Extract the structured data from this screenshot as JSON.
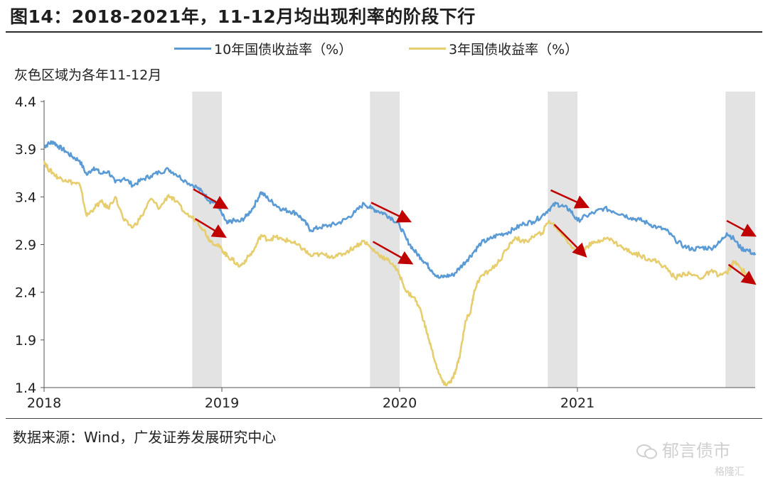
{
  "page": {
    "title": "图14：2018-2021年，11-12月均出现利率的阶段下行",
    "note": "灰色区域为各年11-12月",
    "source": "数据来源：Wind，广发证券发展研究中心",
    "watermark": "郁言债市",
    "watermark2": "格隆汇"
  },
  "chart_data": {
    "type": "line",
    "title": "图14：2018-2021年，11-12月均出现利率的阶段下行",
    "xlabel": "",
    "ylabel": "",
    "xlim": [
      2018.0,
      2022.0
    ],
    "ylim": [
      1.4,
      4.4
    ],
    "yticks": [
      1.4,
      1.9,
      2.4,
      2.9,
      3.4,
      3.9,
      4.4
    ],
    "ytick_labels": [
      "1.4",
      "1.9",
      "2.4",
      "2.9",
      "3.4",
      "3.9",
      "4.4"
    ],
    "xticks": [
      2018,
      2019,
      2020,
      2021
    ],
    "xtick_labels": [
      "2018",
      "2019",
      "2020",
      "2021"
    ],
    "grid": false,
    "legend_position": "top",
    "colors": {
      "shade": "#e3e3e3",
      "arrow": "#c00000"
    },
    "shaded_periods": [
      {
        "from": 2018.833,
        "to": 2019.0
      },
      {
        "from": 2019.833,
        "to": 2020.0
      },
      {
        "from": 2020.833,
        "to": 2021.0
      },
      {
        "from": 2021.833,
        "to": 2022.0
      }
    ],
    "series": [
      {
        "name": "10年国债收益率（%）",
        "color": "#5b9bd5",
        "x": [
          2018.0,
          2018.02,
          2018.05,
          2018.08,
          2018.12,
          2018.16,
          2018.2,
          2018.24,
          2018.28,
          2018.32,
          2018.36,
          2018.4,
          2018.45,
          2018.5,
          2018.55,
          2018.6,
          2018.65,
          2018.7,
          2018.74,
          2018.8,
          2018.86,
          2018.9,
          2018.93,
          2018.97,
          2019.0,
          2019.03,
          2019.06,
          2019.1,
          2019.14,
          2019.18,
          2019.22,
          2019.26,
          2019.3,
          2019.34,
          2019.38,
          2019.42,
          2019.46,
          2019.5,
          2019.55,
          2019.6,
          2019.65,
          2019.7,
          2019.75,
          2019.8,
          2019.84,
          2019.88,
          2019.92,
          2019.96,
          2020.0,
          2020.04,
          2020.08,
          2020.12,
          2020.15,
          2020.18,
          2020.22,
          2020.26,
          2020.3,
          2020.34,
          2020.38,
          2020.42,
          2020.46,
          2020.5,
          2020.55,
          2020.6,
          2020.65,
          2020.7,
          2020.75,
          2020.8,
          2020.84,
          2020.88,
          2020.92,
          2020.96,
          2021.0,
          2021.05,
          2021.1,
          2021.15,
          2021.2,
          2021.25,
          2021.3,
          2021.35,
          2021.4,
          2021.45,
          2021.5,
          2021.55,
          2021.6,
          2021.65,
          2021.7,
          2021.75,
          2021.8,
          2021.84,
          2021.88,
          2021.92,
          2021.96,
          2022.0
        ],
        "values": [
          3.93,
          3.95,
          3.98,
          3.93,
          3.88,
          3.82,
          3.78,
          3.63,
          3.71,
          3.64,
          3.67,
          3.55,
          3.6,
          3.52,
          3.58,
          3.62,
          3.66,
          3.69,
          3.64,
          3.56,
          3.5,
          3.43,
          3.36,
          3.33,
          3.22,
          3.12,
          3.15,
          3.14,
          3.2,
          3.3,
          3.45,
          3.38,
          3.32,
          3.27,
          3.25,
          3.23,
          3.15,
          3.05,
          3.08,
          3.1,
          3.12,
          3.17,
          3.24,
          3.33,
          3.28,
          3.25,
          3.22,
          3.17,
          3.1,
          2.95,
          2.84,
          2.76,
          2.7,
          2.63,
          2.55,
          2.57,
          2.58,
          2.66,
          2.74,
          2.83,
          2.92,
          2.95,
          3.0,
          3.02,
          3.07,
          3.12,
          3.14,
          3.2,
          3.27,
          3.33,
          3.3,
          3.26,
          3.15,
          3.2,
          3.24,
          3.28,
          3.25,
          3.22,
          3.18,
          3.16,
          3.12,
          3.08,
          3.05,
          2.95,
          2.88,
          2.85,
          2.87,
          2.86,
          2.92,
          3.02,
          2.96,
          2.86,
          2.84,
          2.79
        ]
      },
      {
        "name": "3年国债收益率（%）",
        "color": "#e6cd6e",
        "x": [
          2018.0,
          2018.02,
          2018.05,
          2018.08,
          2018.12,
          2018.16,
          2018.2,
          2018.24,
          2018.28,
          2018.32,
          2018.36,
          2018.4,
          2018.45,
          2018.5,
          2018.55,
          2018.6,
          2018.65,
          2018.7,
          2018.74,
          2018.8,
          2018.86,
          2018.9,
          2018.93,
          2018.97,
          2019.0,
          2019.03,
          2019.06,
          2019.1,
          2019.14,
          2019.18,
          2019.22,
          2019.26,
          2019.3,
          2019.34,
          2019.38,
          2019.42,
          2019.46,
          2019.5,
          2019.55,
          2019.6,
          2019.65,
          2019.7,
          2019.75,
          2019.8,
          2019.84,
          2019.88,
          2019.92,
          2019.96,
          2020.0,
          2020.04,
          2020.08,
          2020.12,
          2020.15,
          2020.18,
          2020.22,
          2020.25,
          2020.28,
          2020.3,
          2020.32,
          2020.34,
          2020.37,
          2020.4,
          2020.42,
          2020.45,
          2020.5,
          2020.55,
          2020.6,
          2020.65,
          2020.7,
          2020.75,
          2020.8,
          2020.84,
          2020.88,
          2020.92,
          2020.96,
          2021.0,
          2021.05,
          2021.1,
          2021.15,
          2021.2,
          2021.25,
          2021.3,
          2021.35,
          2021.4,
          2021.45,
          2021.5,
          2021.55,
          2021.6,
          2021.65,
          2021.7,
          2021.75,
          2021.8,
          2021.84,
          2021.88,
          2021.92,
          2021.96,
          2022.0
        ],
        "values": [
          3.78,
          3.7,
          3.65,
          3.6,
          3.58,
          3.55,
          3.53,
          3.2,
          3.28,
          3.35,
          3.28,
          3.4,
          3.15,
          3.08,
          3.2,
          3.38,
          3.28,
          3.42,
          3.35,
          3.22,
          3.15,
          3.05,
          2.95,
          2.9,
          2.85,
          2.78,
          2.74,
          2.67,
          2.75,
          2.84,
          3.0,
          2.95,
          2.98,
          2.95,
          2.94,
          2.9,
          2.85,
          2.78,
          2.8,
          2.78,
          2.78,
          2.82,
          2.88,
          2.94,
          2.86,
          2.8,
          2.75,
          2.7,
          2.58,
          2.4,
          2.35,
          2.2,
          2.0,
          1.8,
          1.55,
          1.43,
          1.45,
          1.5,
          1.6,
          1.75,
          2.1,
          2.2,
          2.42,
          2.55,
          2.62,
          2.7,
          2.84,
          2.98,
          2.92,
          2.98,
          3.02,
          3.15,
          3.08,
          3.0,
          2.9,
          2.8,
          2.88,
          2.92,
          2.97,
          2.94,
          2.87,
          2.82,
          2.79,
          2.75,
          2.72,
          2.65,
          2.55,
          2.6,
          2.58,
          2.55,
          2.62,
          2.58,
          2.6,
          2.72,
          2.65,
          2.58,
          2.48
        ]
      }
    ],
    "annotations": [
      {
        "type": "arrow",
        "from": [
          2018.84,
          3.48
        ],
        "to": [
          2019.02,
          3.29
        ]
      },
      {
        "type": "arrow",
        "from": [
          2018.85,
          3.17
        ],
        "to": [
          2019.01,
          2.99
        ]
      },
      {
        "type": "arrow",
        "from": [
          2019.84,
          3.34
        ],
        "to": [
          2020.05,
          3.15
        ]
      },
      {
        "type": "arrow",
        "from": [
          2019.85,
          2.93
        ],
        "to": [
          2020.06,
          2.71
        ]
      },
      {
        "type": "arrow",
        "from": [
          2020.85,
          3.47
        ],
        "to": [
          2021.05,
          3.3
        ]
      },
      {
        "type": "arrow",
        "from": [
          2020.87,
          3.11
        ],
        "to": [
          2021.04,
          2.79
        ]
      },
      {
        "type": "arrow",
        "from": [
          2021.84,
          3.15
        ],
        "to": [
          2021.99,
          3.0
        ]
      },
      {
        "type": "arrow",
        "from": [
          2021.85,
          2.69
        ],
        "to": [
          2021.99,
          2.5
        ]
      }
    ]
  }
}
